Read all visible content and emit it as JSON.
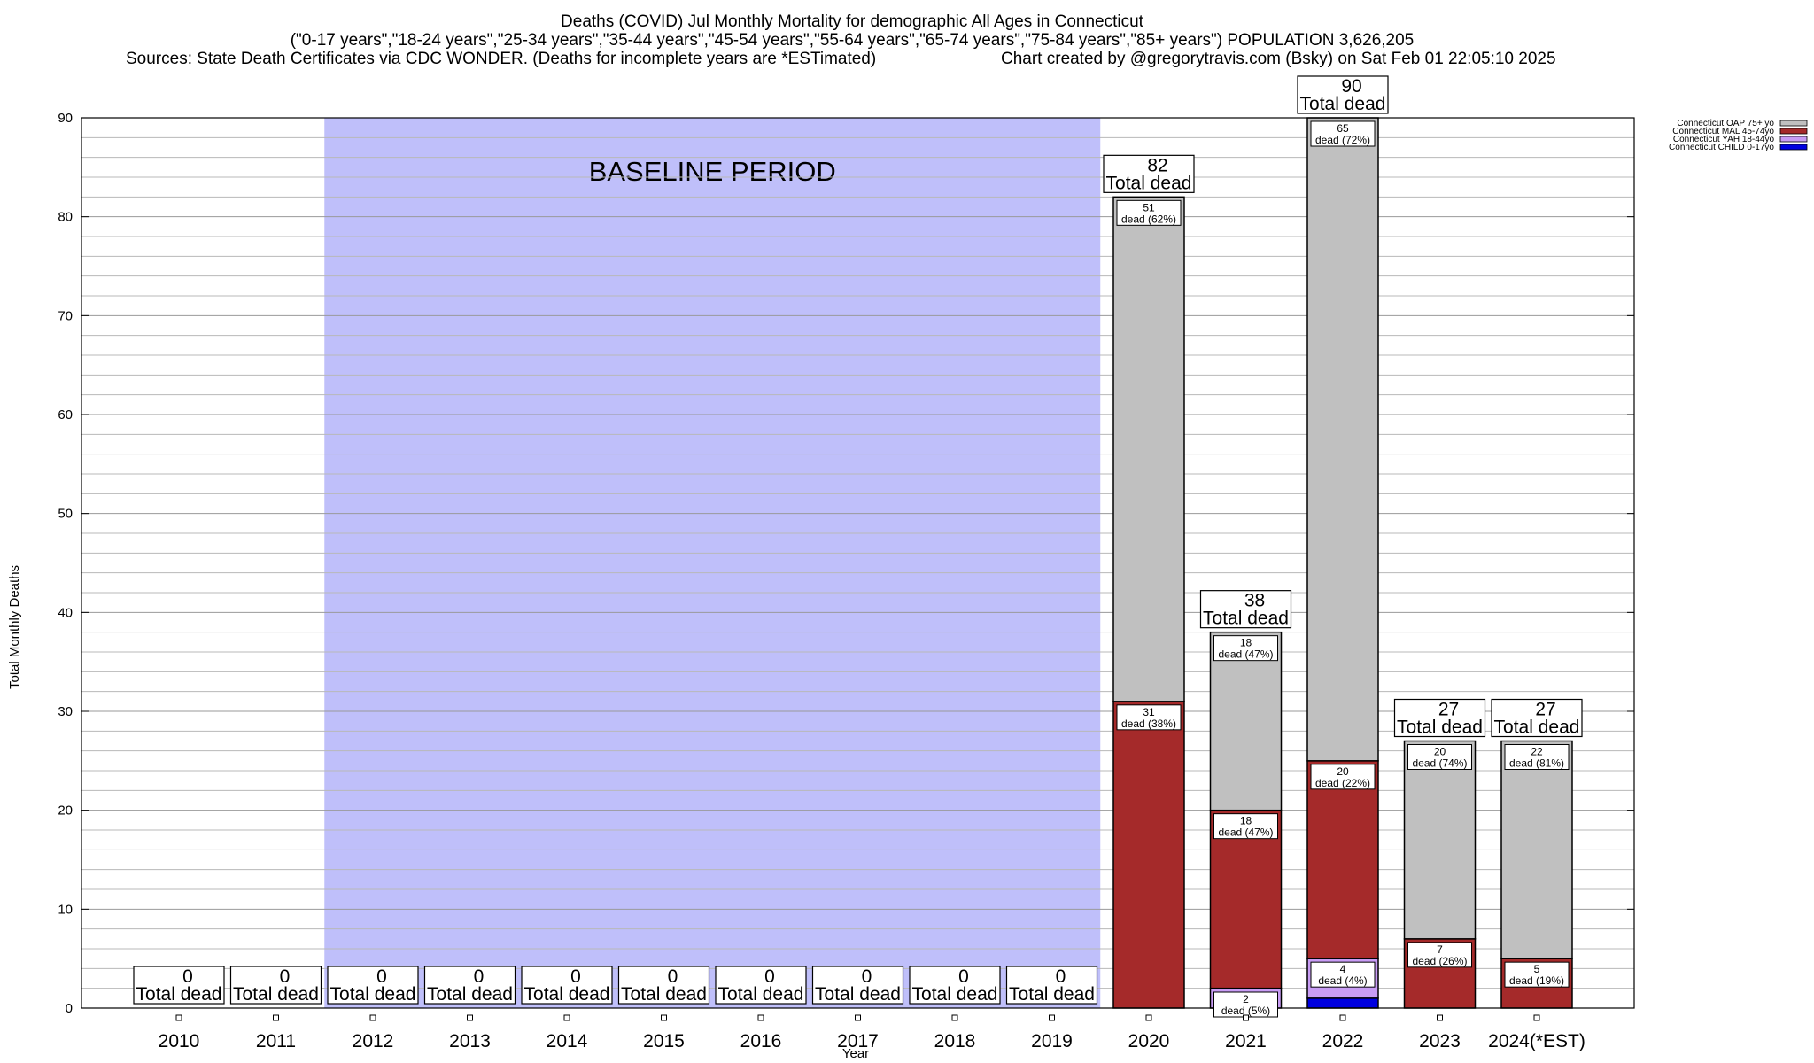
{
  "chart_data": {
    "type": "bar",
    "stacked": true,
    "title": "Deaths (COVID) Jul Monthly Mortality for demographic All Ages in Connecticut",
    "subtitle": "(\"0-17 years\",\"18-24 years\",\"25-34 years\",\"35-44 years\",\"45-54 years\",\"55-64 years\",\"65-74 years\",\"75-84 years\",\"85+ years\") POPULATION 3,626,205",
    "sources": "Sources: State Death Certificates via CDC WONDER. (Deaths for incomplete years are *ESTimated)",
    "credit": "Chart created by @gregorytravis.com (Bsky) on Sat Feb 01 22:05:10 2025",
    "xlabel": "Year",
    "ylabel": "Total Monthly Deaths",
    "ylim": [
      0,
      90
    ],
    "yticks": [
      0,
      10,
      20,
      30,
      40,
      50,
      60,
      70,
      80,
      90
    ],
    "grid": true,
    "categories": [
      "2010",
      "2011",
      "2012",
      "2013",
      "2014",
      "2015",
      "2016",
      "2017",
      "2018",
      "2019",
      "2020",
      "2021",
      "2022",
      "2023",
      "2024(*EST)"
    ],
    "baseline": {
      "label": "BASELINE PERIOD",
      "from": "2012",
      "to": "2019",
      "color": "#bfbffa"
    },
    "total_label_suffix": "Total dead",
    "totals": [
      0,
      0,
      0,
      0,
      0,
      0,
      0,
      0,
      0,
      0,
      82,
      38,
      90,
      27,
      27
    ],
    "series": [
      {
        "name": "Connecticut CHILD 0-17yo",
        "color": "#0000e0",
        "values": [
          0,
          0,
          0,
          0,
          0,
          0,
          0,
          0,
          0,
          0,
          0,
          0,
          1,
          0,
          0
        ],
        "labels": [
          null,
          null,
          null,
          null,
          null,
          null,
          null,
          null,
          null,
          null,
          null,
          null,
          null,
          null,
          null
        ]
      },
      {
        "name": "Connecticut YAH 18-44yo",
        "color": "#c89cf4",
        "values": [
          0,
          0,
          0,
          0,
          0,
          0,
          0,
          0,
          0,
          0,
          0,
          2,
          4,
          0,
          0
        ],
        "labels": [
          null,
          null,
          null,
          null,
          null,
          null,
          null,
          null,
          null,
          null,
          null,
          [
            "2",
            "dead (5%)"
          ],
          [
            "4",
            "dead (4%)"
          ],
          null,
          null
        ]
      },
      {
        "name": "Connecticut MAL 45-74yo",
        "color": "#a52a2a",
        "values": [
          0,
          0,
          0,
          0,
          0,
          0,
          0,
          0,
          0,
          0,
          31,
          18,
          20,
          7,
          5
        ],
        "labels": [
          null,
          null,
          null,
          null,
          null,
          null,
          null,
          null,
          null,
          null,
          [
            "31",
            "dead (38%)"
          ],
          [
            "18",
            "dead (47%)"
          ],
          [
            "20",
            "dead (22%)"
          ],
          [
            "7",
            "dead (26%)"
          ],
          [
            "5",
            "dead (19%)"
          ]
        ]
      },
      {
        "name": "Connecticut OAP 75+ yo",
        "color": "#c0c0c0",
        "values": [
          0,
          0,
          0,
          0,
          0,
          0,
          0,
          0,
          0,
          0,
          51,
          18,
          65,
          20,
          22
        ],
        "labels": [
          null,
          null,
          null,
          null,
          null,
          null,
          null,
          null,
          null,
          null,
          [
            "51",
            "dead (62%)"
          ],
          [
            "18",
            "dead (47%)"
          ],
          [
            "65",
            "dead (72%)"
          ],
          [
            "20",
            "dead (74%)"
          ],
          [
            "22",
            "dead (81%)"
          ]
        ]
      }
    ],
    "legend_order": [
      "Connecticut OAP 75+ yo",
      "Connecticut MAL 45-74yo",
      "Connecticut YAH 18-44yo",
      "Connecticut CHILD 0-17yo"
    ],
    "legend_position": "top-right"
  }
}
